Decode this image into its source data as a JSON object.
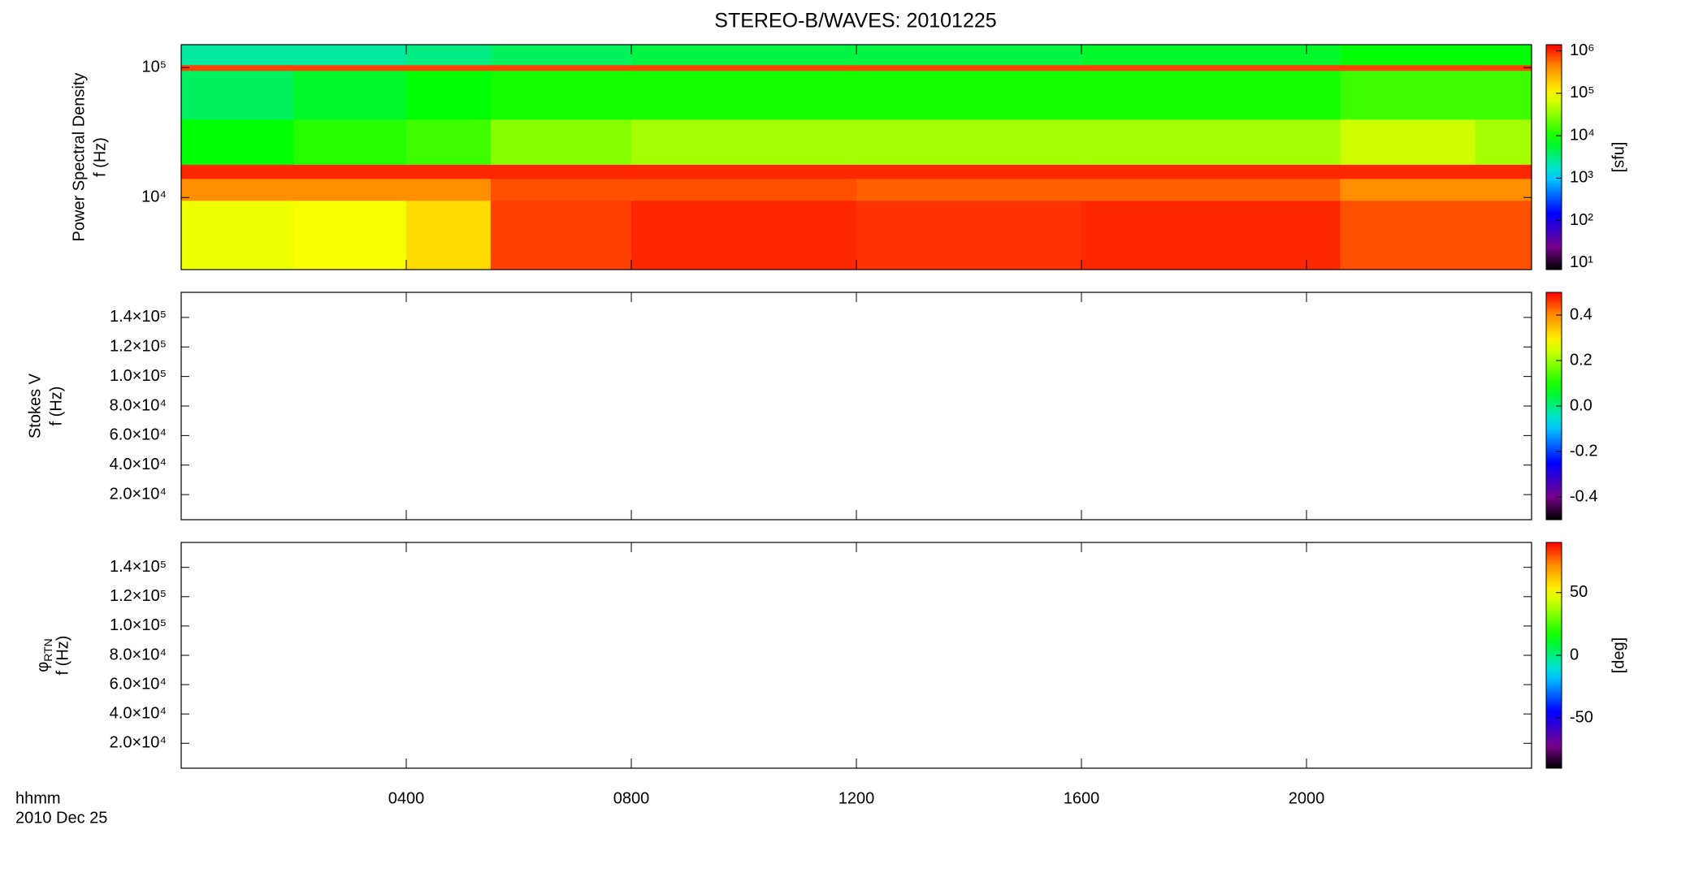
{
  "chart_data": [
    {
      "type": "heatmap",
      "title": "STEREO-B/WAVES: 20101225",
      "ylabel": [
        "Power Spectral Density",
        "f (Hz)"
      ],
      "yscale": "log",
      "ylim": [
        2790,
        150000
      ],
      "yticks": [
        {
          "value": 10000,
          "label": "10⁴"
        },
        {
          "value": 100000,
          "label": "10⁵"
        }
      ],
      "xlim": [
        0,
        24
      ],
      "x_edges": [
        0,
        2,
        4,
        5.5,
        8,
        12,
        16,
        20.6,
        23,
        24
      ],
      "y_edges": [
        2790,
        9500,
        14000,
        18000,
        40000,
        95000,
        105000,
        150000
      ],
      "z": [
        [
          80000,
          90000,
          150000,
          800000,
          1000000,
          900000,
          1000000,
          700000,
          700000
        ],
        [
          400000,
          400000,
          400000,
          700000,
          700000,
          600000,
          600000,
          400000,
          400000
        ],
        [
          1000000,
          1000000,
          1000000,
          1000000,
          1000000,
          1000000,
          1000000,
          1000000,
          1000000
        ],
        [
          8000,
          12000,
          15000,
          30000,
          40000,
          40000,
          40000,
          60000,
          40000
        ],
        [
          4000,
          6000,
          8000,
          10000,
          10000,
          10000,
          10000,
          15000,
          15000
        ],
        [
          800000,
          800000,
          800000,
          800000,
          800000,
          800000,
          800000,
          800000,
          800000
        ],
        [
          2500,
          2500,
          3000,
          4000,
          5000,
          5000,
          6000,
          8000,
          8000
        ]
      ],
      "colormap": "rainbow",
      "colorbar": {
        "scale": "log",
        "lim": [
          7,
          1400000
        ],
        "label": "[sfu]",
        "ticks": [
          {
            "value": 10,
            "label": "10¹"
          },
          {
            "value": 100,
            "label": "10²"
          },
          {
            "value": 1000,
            "label": "10³"
          },
          {
            "value": 10000,
            "label": "10⁴"
          },
          {
            "value": 100000,
            "label": "10⁵"
          },
          {
            "value": 1000000,
            "label": "10⁶"
          }
        ]
      }
    },
    {
      "type": "heatmap",
      "ylabel": [
        "Stokes V",
        "f (Hz)"
      ],
      "yscale": "linear",
      "ylim": [
        3000,
        157000
      ],
      "yticks": [
        {
          "value": 20000,
          "label": "2.0×10⁴"
        },
        {
          "value": 40000,
          "label": "4.0×10⁴"
        },
        {
          "value": 60000,
          "label": "6.0×10⁴"
        },
        {
          "value": 80000,
          "label": "8.0×10⁴"
        },
        {
          "value": 100000,
          "label": "1.0×10⁵"
        },
        {
          "value": 120000,
          "label": "1.2×10⁵"
        },
        {
          "value": 140000,
          "label": "1.4×10⁵"
        }
      ],
      "xlim": [
        0,
        24
      ],
      "colormap": "rainbow",
      "colorbar": {
        "scale": "linear",
        "lim": [
          -0.5,
          0.5
        ],
        "ticks": [
          -0.4,
          -0.2,
          {
            "value": 0,
            "label": "0.0"
          },
          0.2,
          0.4
        ]
      }
    },
    {
      "type": "heatmap",
      "ylabel_symbol": "φ",
      "ylabel_subscript": "RTN",
      "ylabel_unit": "f (Hz)",
      "yscale": "linear",
      "ylim": [
        3000,
        157000
      ],
      "yticks": [
        {
          "value": 20000,
          "label": "2.0×10⁴"
        },
        {
          "value": 40000,
          "label": "4.0×10⁴"
        },
        {
          "value": 60000,
          "label": "6.0×10⁴"
        },
        {
          "value": 80000,
          "label": "8.0×10⁴"
        },
        {
          "value": 100000,
          "label": "1.0×10⁵"
        },
        {
          "value": 120000,
          "label": "1.2×10⁵"
        },
        {
          "value": 140000,
          "label": "1.4×10⁵"
        }
      ],
      "xlim": [
        0,
        24
      ],
      "xticks": [
        {
          "value": 4,
          "label": "0400"
        },
        {
          "value": 8,
          "label": "0800"
        },
        {
          "value": 12,
          "label": "1200"
        },
        {
          "value": 16,
          "label": "1600"
        },
        {
          "value": 20,
          "label": "2000"
        }
      ],
      "xlabel": "hhmm",
      "date": "2010 Dec 25",
      "colormap": "rainbow",
      "colorbar": {
        "scale": "linear",
        "lim": [
          -90,
          90
        ],
        "label": "[deg]",
        "ticks": [
          -50,
          0,
          50
        ]
      }
    }
  ]
}
